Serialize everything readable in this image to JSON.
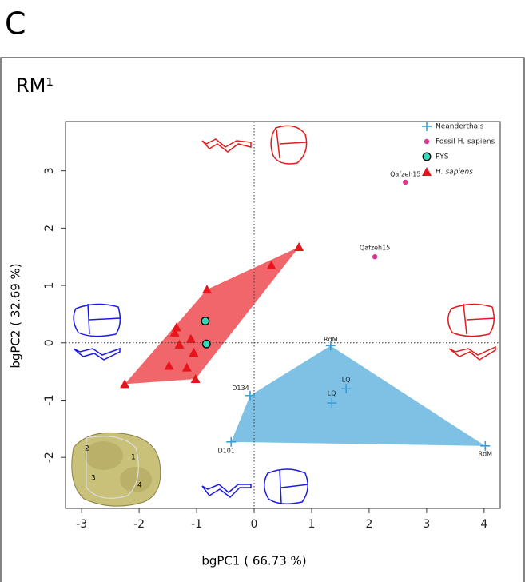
{
  "panel_label": "C",
  "chart_data": {
    "type": "scatter",
    "title": "RM¹",
    "x_label": "bgPC1 ( 66.73 %)",
    "y_label": "bgPC2 ( 32.69 %)",
    "xlim": [
      -3.28,
      4.28
    ],
    "ylim": [
      -2.89,
      3.86
    ],
    "xticks": [
      -3,
      -2,
      -1,
      0,
      1,
      2,
      3,
      4
    ],
    "yticks": [
      -2,
      -1,
      0,
      1,
      2,
      3
    ],
    "reference_lines": {
      "x": 0,
      "y": 0
    },
    "legend": "upper right",
    "series": [
      {
        "name": "Neanderthals",
        "color": "#3a9fd6",
        "marker": "plus",
        "hull": true,
        "x": [
          1.33,
          1.6,
          1.35,
          -0.07,
          -0.4,
          4.02
        ],
        "values": [
          -0.05,
          -0.8,
          -1.05,
          -0.92,
          -1.73,
          -1.8
        ],
        "labels": [
          "RdM",
          "LQ",
          "LQ",
          "D134",
          "D101",
          "RdM"
        ]
      },
      {
        "name": "Fossil H. sapiens",
        "color": "#e0358f",
        "marker": "dot",
        "hull": false,
        "x": [
          2.63,
          2.1
        ],
        "values": [
          2.8,
          1.5
        ],
        "labels": [
          "Qafzeh15",
          "Qafzeh15"
        ]
      },
      {
        "name": "PYS",
        "color": "#33d9b8",
        "marker": "circle",
        "hull": false,
        "x": [
          -0.85,
          -0.83
        ],
        "values": [
          0.38,
          -0.02
        ]
      },
      {
        "name": "H. sapiens",
        "color": "#e8141c",
        "marker": "triangle",
        "hull": true,
        "x": [
          0.78,
          0.3,
          -0.82,
          -1.35,
          -1.38,
          -1.1,
          -1.3,
          -1.05,
          -1.48,
          -1.17,
          -1.02,
          -2.25
        ],
        "values": [
          1.67,
          1.35,
          0.93,
          0.27,
          0.18,
          0.07,
          -0.03,
          -0.17,
          -0.4,
          -0.43,
          -0.63,
          -0.72
        ]
      }
    ]
  },
  "tooth_image": {
    "cusp_labels": [
      "1",
      "2",
      "3",
      "4"
    ]
  }
}
